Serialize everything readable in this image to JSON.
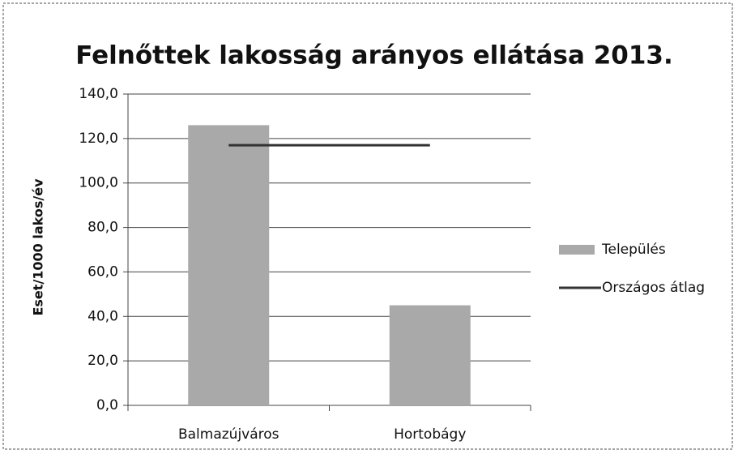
{
  "chart_data": {
    "type": "bar",
    "title": "Felnőttek lakosság arányos ellátása 2013.",
    "y_label": "Eset/1000 lakos/év",
    "categories": [
      "Balmazújváros",
      "Hortobágy"
    ],
    "series": [
      {
        "name": "Település",
        "type": "bar",
        "color": "#a9a9a9",
        "values": [
          126,
          45
        ]
      },
      {
        "name": "Országos átlag",
        "type": "line",
        "color": "#333333",
        "values": [
          117,
          117
        ]
      }
    ],
    "ylim": [
      0,
      140
    ],
    "yticks": [
      {
        "value": 0,
        "label": "0,0"
      },
      {
        "value": 20,
        "label": "20,0"
      },
      {
        "value": 40,
        "label": "40,0"
      },
      {
        "value": 60,
        "label": "60,0"
      },
      {
        "value": 80,
        "label": "80,0"
      },
      {
        "value": 100,
        "label": "100,0"
      },
      {
        "value": 120,
        "label": "120,0"
      },
      {
        "value": 140,
        "label": "140,0"
      }
    ],
    "grid": true,
    "legend": "right"
  }
}
